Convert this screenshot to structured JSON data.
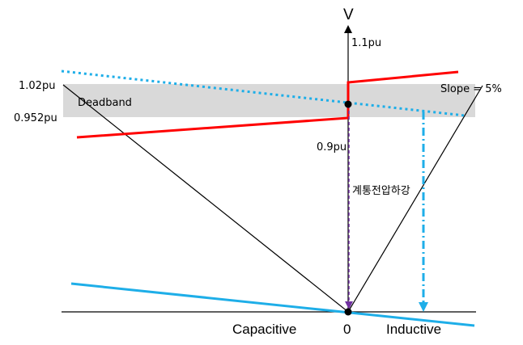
{
  "labels": {
    "v_axis": "V",
    "v_1_1": "1.1pu",
    "v_1_02": "1.02pu",
    "v_0_952": "0.952pu",
    "v_0_9": "0.9pu",
    "deadband": "Deadband",
    "slope": "Slope = 5%",
    "system_voltage_drop": "계통전압하강",
    "capacitive": "Capacitive",
    "origin": "0",
    "inductive": "Inductive"
  },
  "colors": {
    "axis": "#000000",
    "v_i_characteristic": "#ff0000",
    "system_line": "#1eaee8",
    "deadband_fill": "#d9d9d9",
    "arrow_purple": "#7030a0",
    "background": "#ffffff"
  }
}
